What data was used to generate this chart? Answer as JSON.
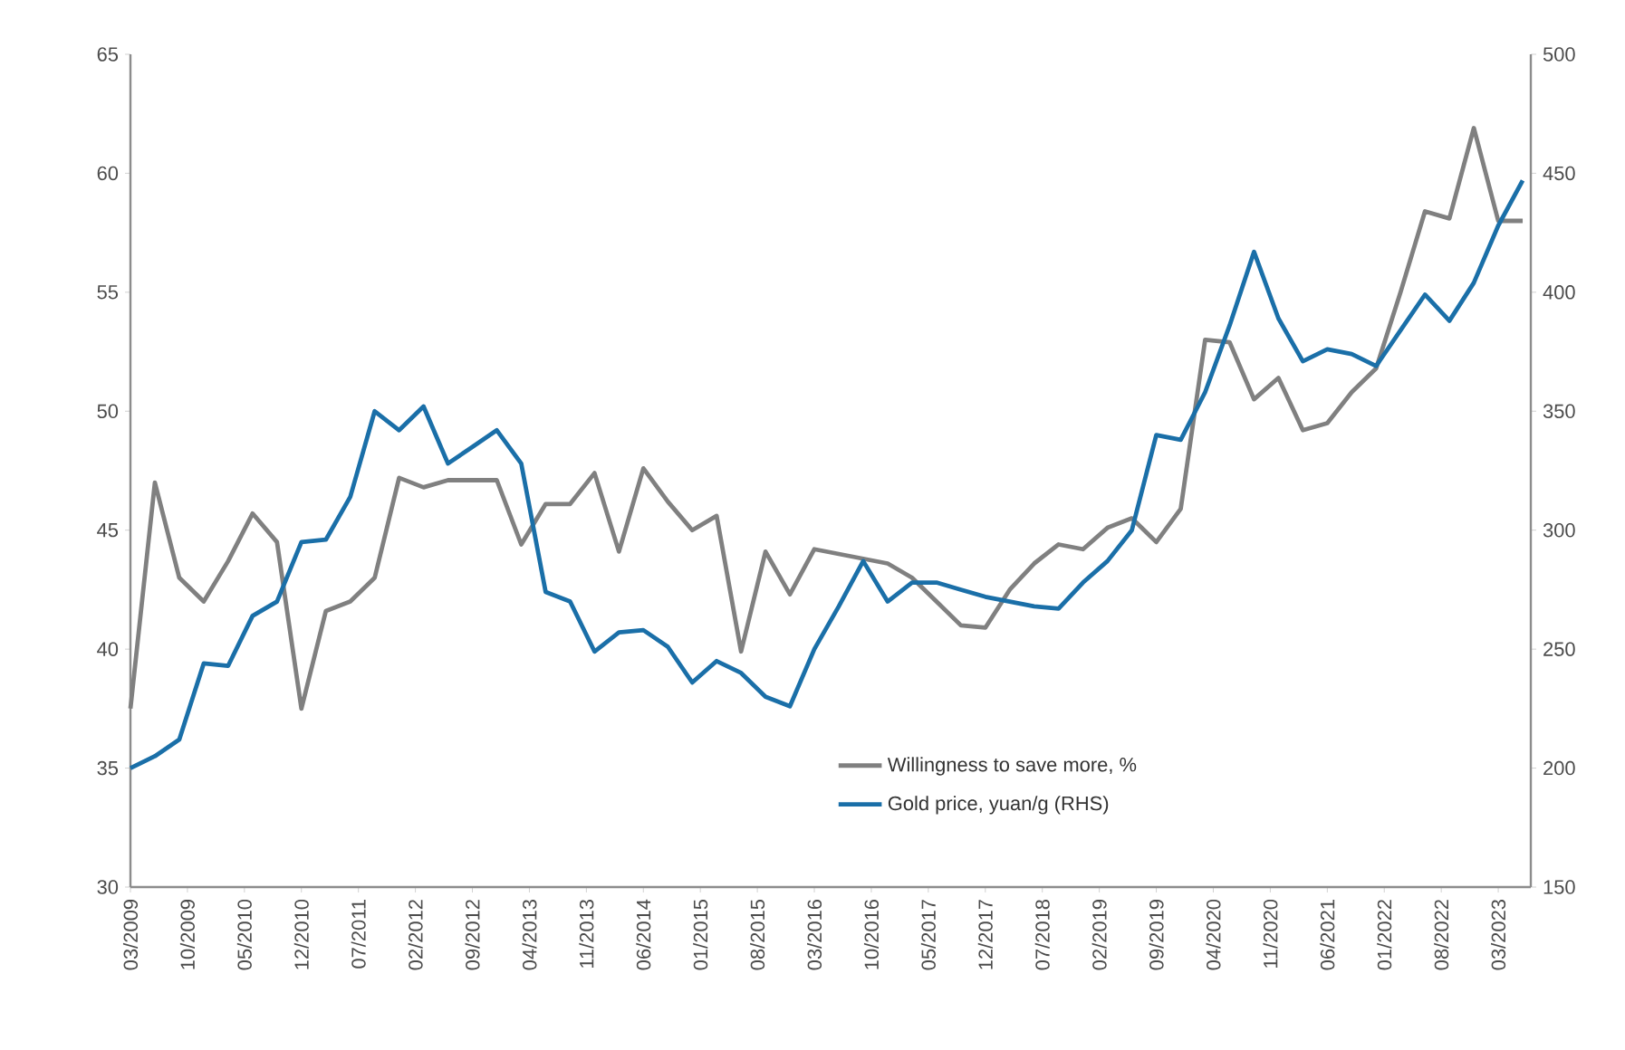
{
  "chart_data": {
    "type": "line",
    "x": [
      "2009-03",
      "2009-06",
      "2009-09",
      "2009-12",
      "2010-03",
      "2010-06",
      "2010-09",
      "2010-12",
      "2011-03",
      "2011-06",
      "2011-09",
      "2011-12",
      "2012-03",
      "2012-06",
      "2012-09",
      "2012-12",
      "2013-03",
      "2013-06",
      "2013-09",
      "2013-12",
      "2014-03",
      "2014-06",
      "2014-09",
      "2014-12",
      "2015-03",
      "2015-06",
      "2015-09",
      "2015-12",
      "2016-03",
      "2016-06",
      "2016-09",
      "2016-12",
      "2017-03",
      "2017-06",
      "2017-09",
      "2017-12",
      "2018-03",
      "2018-06",
      "2018-09",
      "2018-12",
      "2019-03",
      "2019-06",
      "2019-09",
      "2019-12",
      "2020-03",
      "2020-06",
      "2020-09",
      "2020-12",
      "2021-03",
      "2021-06",
      "2021-09",
      "2021-12",
      "2022-03",
      "2022-06",
      "2022-09",
      "2022-12",
      "2023-03",
      "2023-06"
    ],
    "series": [
      {
        "name": "Willingness to save more, %",
        "color": "#808080",
        "values": [
          37.5,
          47,
          43,
          42,
          43.7,
          45.7,
          44.5,
          37.5,
          41.6,
          42,
          43,
          47.2,
          46.8,
          47.1,
          47.1,
          47.1,
          44.4,
          46.1,
          46.1,
          47.4,
          44.1,
          47.6,
          46.2,
          45,
          45.6,
          39.9,
          44.1,
          42.3,
          44.2,
          44,
          43.8,
          43.6,
          43,
          42,
          41,
          40.9,
          42.5,
          43.6,
          44.4,
          44.2,
          45.1,
          45.5,
          44.5,
          45.9,
          53,
          52.9,
          50.5,
          51.4,
          49.2,
          49.5,
          50.8,
          51.8,
          55,
          58.4,
          58.1,
          61.9,
          58,
          58
        ]
      },
      {
        "name": "Gold price, yuan/g (RHS)",
        "color": "#1a6fa8",
        "axis": "y2",
        "values": [
          200,
          205,
          212,
          244,
          243,
          264,
          270,
          295,
          296,
          314,
          350,
          342,
          352,
          328,
          335,
          342,
          328,
          274,
          270,
          249,
          257,
          258,
          251,
          236,
          245,
          240,
          230,
          226,
          250,
          268,
          287,
          270,
          278,
          278,
          275,
          272,
          270,
          268,
          267,
          278,
          287,
          300,
          340,
          338,
          358,
          386,
          417,
          389,
          371,
          376,
          374,
          369,
          384,
          399,
          388,
          404,
          428,
          447
        ]
      }
    ],
    "xlim": [
      "2009-03",
      "2023-07"
    ],
    "xticks": [
      {
        "value": "2009-03",
        "label": "03/2009"
      },
      {
        "value": "2009-10",
        "label": "10/2009"
      },
      {
        "value": "2010-05",
        "label": "05/2010"
      },
      {
        "value": "2010-12",
        "label": "12/2010"
      },
      {
        "value": "2011-07",
        "label": "07/2011"
      },
      {
        "value": "2012-02",
        "label": "02/2012"
      },
      {
        "value": "2012-09",
        "label": "09/2012"
      },
      {
        "value": "2013-04",
        "label": "04/2013"
      },
      {
        "value": "2013-11",
        "label": "11/2013"
      },
      {
        "value": "2014-06",
        "label": "06/2014"
      },
      {
        "value": "2015-01",
        "label": "01/2015"
      },
      {
        "value": "2015-08",
        "label": "08/2015"
      },
      {
        "value": "2016-03",
        "label": "03/2016"
      },
      {
        "value": "2016-10",
        "label": "10/2016"
      },
      {
        "value": "2017-05",
        "label": "05/2017"
      },
      {
        "value": "2017-12",
        "label": "12/2017"
      },
      {
        "value": "2018-07",
        "label": "07/2018"
      },
      {
        "value": "2019-02",
        "label": "02/2019"
      },
      {
        "value": "2019-09",
        "label": "09/2019"
      },
      {
        "value": "2020-04",
        "label": "04/2020"
      },
      {
        "value": "2020-11",
        "label": "11/2020"
      },
      {
        "value": "2021-06",
        "label": "06/2021"
      },
      {
        "value": "2022-01",
        "label": "01/2022"
      },
      {
        "value": "2022-08",
        "label": "08/2022"
      },
      {
        "value": "2023-03",
        "label": "03/2023"
      }
    ],
    "ylim": [
      30,
      65
    ],
    "yticks": [
      30,
      35,
      40,
      45,
      50,
      55,
      60,
      65
    ],
    "y2lim": [
      150,
      500
    ],
    "y2ticks": [
      150,
      200,
      250,
      300,
      350,
      400,
      450,
      500
    ],
    "legend": "bottom",
    "grid": false,
    "marker": "none",
    "line_style": "solid"
  }
}
